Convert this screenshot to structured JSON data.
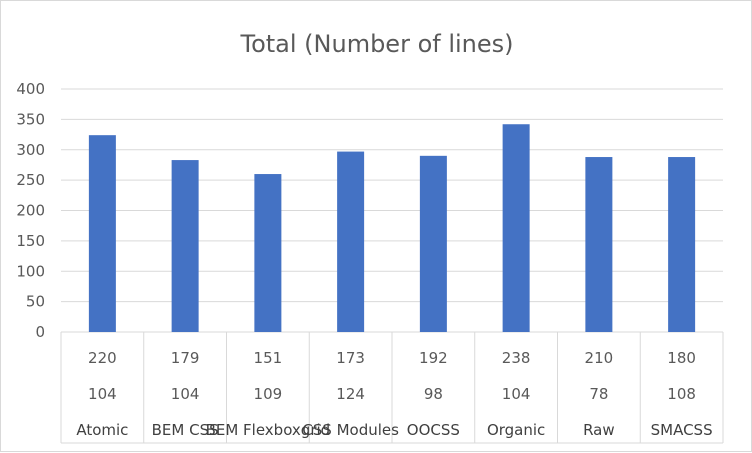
{
  "chart_data": {
    "type": "bar",
    "title": "Total (Number of lines)",
    "categories": [
      "Atomic",
      "BEM CSS",
      "BEM Flexboxgrid",
      "CSS Modules",
      "OOCSS",
      "Organic",
      "Raw",
      "SMACSS"
    ],
    "series": [
      {
        "values": [
          220,
          179,
          151,
          173,
          192,
          238,
          210,
          180
        ]
      },
      {
        "values": [
          104,
          104,
          109,
          124,
          98,
          104,
          78,
          108
        ]
      }
    ],
    "yticks": [
      "0",
      "50",
      "100",
      "150",
      "200",
      "250",
      "300",
      "350",
      "400"
    ],
    "ylim": [
      0,
      400
    ],
    "grid": true,
    "legend": "none",
    "bar_color": "#4472C4"
  }
}
